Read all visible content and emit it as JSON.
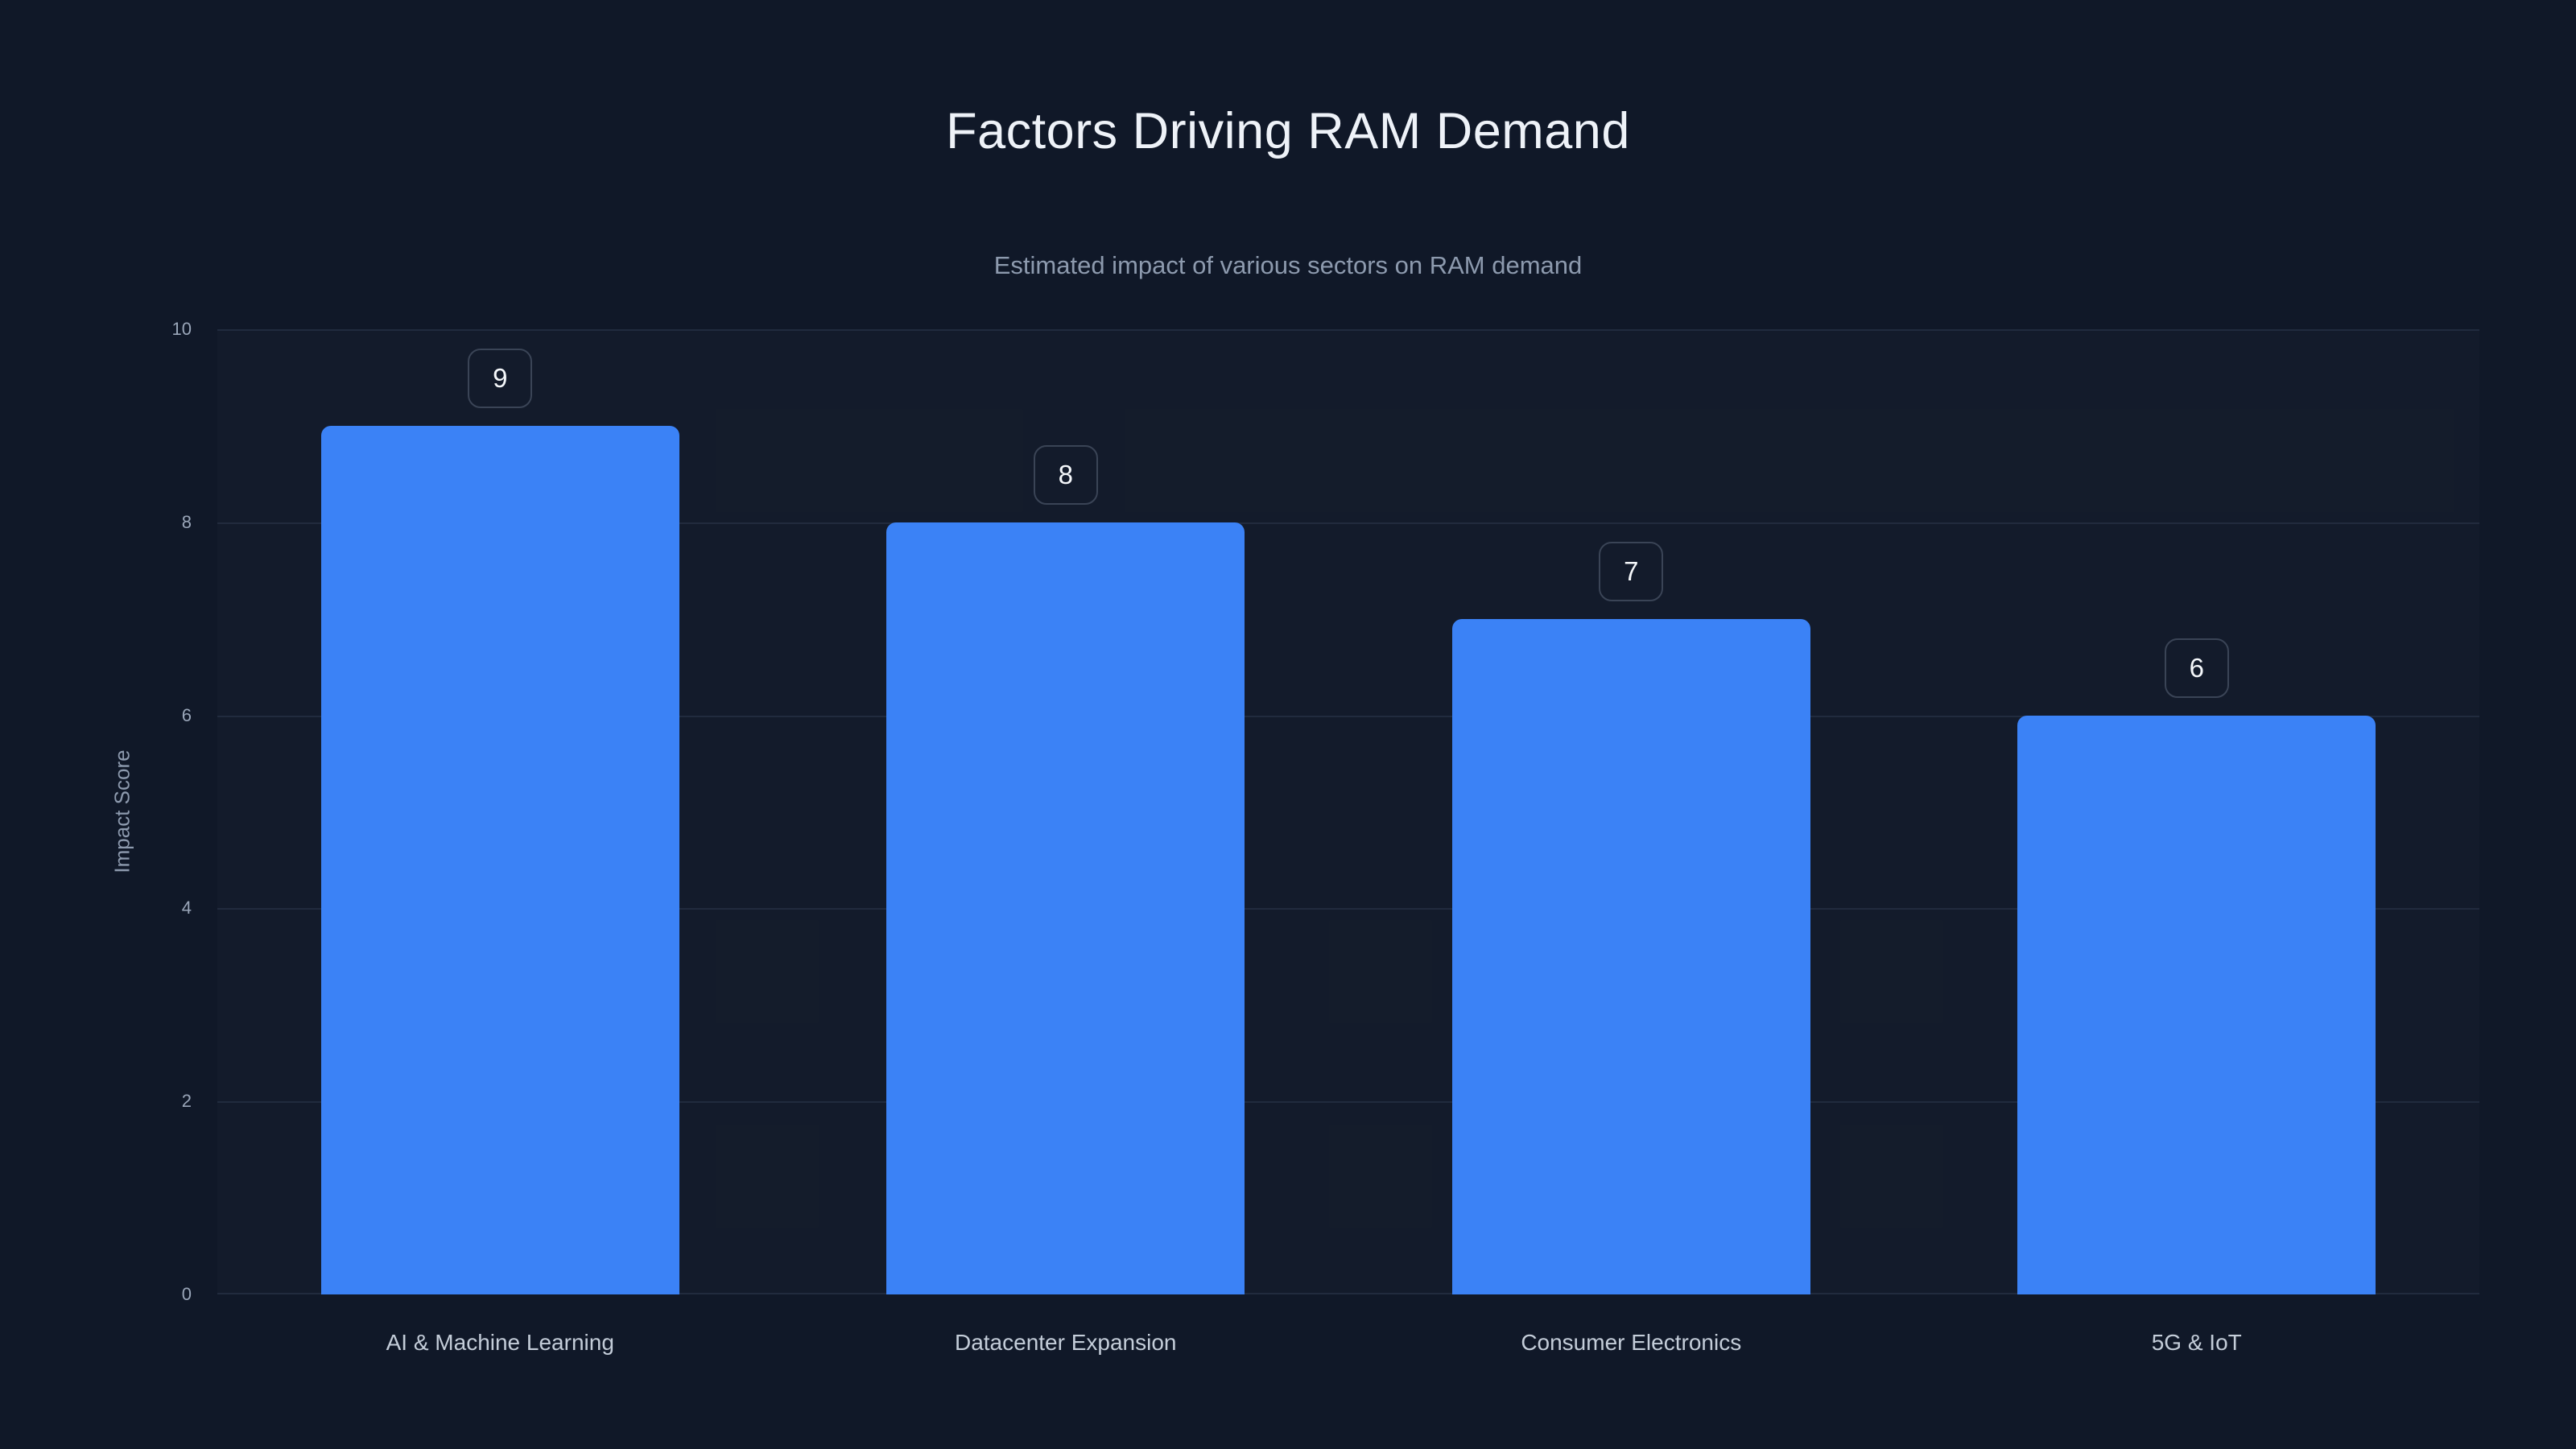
{
  "page": {
    "title": "Factors Driving RAM Demand",
    "subtitle": "Estimated impact of various sectors on RAM demand"
  },
  "chart_data": {
    "type": "bar",
    "title": "Factors Driving RAM Demand",
    "subtitle": "Estimated impact of various sectors on RAM demand",
    "categories": [
      "AI & Machine Learning",
      "Datacenter Expansion",
      "Consumer Electronics",
      "5G & IoT"
    ],
    "values": [
      9,
      8,
      7,
      6
    ],
    "value_labels": [
      "9",
      "8",
      "7",
      "6"
    ],
    "xlabel": "",
    "ylabel": "Impact Score",
    "ylim": [
      0,
      10
    ],
    "yticks": [
      0,
      2,
      4,
      6,
      8,
      10
    ],
    "grid": true,
    "legend": false
  },
  "colors": {
    "background": "#101828",
    "bar": "#3b82f6",
    "gridline": "#212b3e",
    "title_text": "#eef2f8",
    "subtitle_text": "#8d9aae",
    "tick_text": "#9aa6b9",
    "category_text": "#c4cdd9",
    "badge_border": "#3a4456",
    "badge_text": "#f5f8fb"
  }
}
